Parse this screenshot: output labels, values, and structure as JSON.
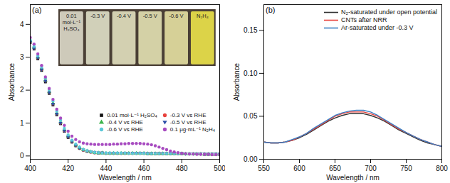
{
  "chart_data": [
    {
      "type": "scatter",
      "title": "(a)",
      "x_label": "Wavelength / nm",
      "y_label": "Absorbance",
      "x": [
        400,
        402,
        404,
        406,
        408,
        410,
        412,
        414,
        416,
        418,
        420,
        422,
        424,
        426,
        428,
        430,
        432,
        434,
        436,
        438,
        440,
        442,
        444,
        446,
        448,
        450,
        452,
        454,
        456,
        458,
        460,
        462,
        464,
        466,
        468,
        470,
        472,
        474,
        476,
        478,
        480,
        482,
        484,
        486,
        488,
        490,
        492,
        494,
        496,
        498,
        500
      ],
      "xlim": [
        400,
        500
      ],
      "xticks": [
        400,
        420,
        440,
        460,
        480,
        500
      ],
      "ylim": [
        -0.1,
        4.6
      ],
      "yticks": [
        0,
        1,
        2,
        3,
        4
      ],
      "grid": false,
      "legend": "lower right",
      "series": [
        {
          "name": "0.01 mol·L⁻¹ H₂SO₄",
          "color": "#111111",
          "marker": "square",
          "values": [
            3.45,
            3.25,
            2.95,
            2.6,
            2.25,
            1.9,
            1.55,
            1.25,
            0.98,
            0.75,
            0.56,
            0.42,
            0.31,
            0.23,
            0.18,
            0.14,
            0.12,
            0.1,
            0.09,
            0.09,
            0.08,
            0.08,
            0.08,
            0.08,
            0.08,
            0.08,
            0.08,
            0.08,
            0.08,
            0.08,
            0.08,
            0.07,
            0.07,
            0.07,
            0.07,
            0.07,
            0.07,
            0.07,
            0.07,
            0.07,
            0.07,
            0.06,
            0.06,
            0.06,
            0.06,
            0.06,
            0.05,
            0.05,
            0.05,
            0.05,
            0.05
          ]
        },
        {
          "name": "-0.3 V vs RHE",
          "color": "#e8413c",
          "marker": "circle",
          "values": [
            3.48,
            3.28,
            2.98,
            2.63,
            2.28,
            1.93,
            1.58,
            1.28,
            1.0,
            0.77,
            0.58,
            0.43,
            0.32,
            0.24,
            0.18,
            0.14,
            0.12,
            0.1,
            0.09,
            0.09,
            0.08,
            0.08,
            0.08,
            0.08,
            0.08,
            0.08,
            0.08,
            0.08,
            0.08,
            0.08,
            0.08,
            0.07,
            0.07,
            0.07,
            0.07,
            0.07,
            0.07,
            0.07,
            0.07,
            0.07,
            0.07,
            0.06,
            0.06,
            0.06,
            0.06,
            0.06,
            0.05,
            0.05,
            0.05,
            0.05,
            0.05
          ]
        },
        {
          "name": "-0.4 V vs RHE",
          "color": "#3cb44b",
          "marker": "triangle",
          "values": [
            3.5,
            3.3,
            3.0,
            2.65,
            2.3,
            1.95,
            1.6,
            1.3,
            1.02,
            0.79,
            0.6,
            0.45,
            0.33,
            0.25,
            0.19,
            0.15,
            0.12,
            0.1,
            0.09,
            0.09,
            0.08,
            0.08,
            0.08,
            0.08,
            0.08,
            0.08,
            0.08,
            0.08,
            0.08,
            0.08,
            0.08,
            0.07,
            0.07,
            0.07,
            0.07,
            0.07,
            0.07,
            0.07,
            0.07,
            0.07,
            0.07,
            0.06,
            0.06,
            0.06,
            0.06,
            0.06,
            0.05,
            0.05,
            0.05,
            0.05,
            0.05
          ]
        },
        {
          "name": "-0.5 V vs RHE",
          "color": "#2b4fa8",
          "marker": "triangle-down",
          "values": [
            3.46,
            3.26,
            2.97,
            2.62,
            2.27,
            1.92,
            1.57,
            1.27,
            0.99,
            0.76,
            0.57,
            0.43,
            0.31,
            0.23,
            0.18,
            0.14,
            0.12,
            0.1,
            0.09,
            0.09,
            0.08,
            0.08,
            0.08,
            0.08,
            0.08,
            0.08,
            0.08,
            0.08,
            0.08,
            0.08,
            0.08,
            0.07,
            0.07,
            0.07,
            0.07,
            0.07,
            0.07,
            0.07,
            0.07,
            0.07,
            0.07,
            0.06,
            0.06,
            0.06,
            0.06,
            0.06,
            0.05,
            0.05,
            0.05,
            0.05,
            0.05
          ]
        },
        {
          "name": "-0.6 V vs RHE",
          "color": "#5bc8d8",
          "marker": "circle",
          "values": [
            3.52,
            3.33,
            3.04,
            2.7,
            2.36,
            2.01,
            1.67,
            1.36,
            1.08,
            0.84,
            0.64,
            0.48,
            0.36,
            0.27,
            0.2,
            0.16,
            0.13,
            0.11,
            0.1,
            0.09,
            0.09,
            0.09,
            0.09,
            0.09,
            0.09,
            0.09,
            0.08,
            0.08,
            0.08,
            0.08,
            0.08,
            0.07,
            0.07,
            0.07,
            0.07,
            0.07,
            0.07,
            0.07,
            0.07,
            0.07,
            0.07,
            0.06,
            0.06,
            0.06,
            0.06,
            0.06,
            0.05,
            0.05,
            0.05,
            0.05,
            0.05
          ]
        },
        {
          "name": "0.1 μg·mL⁻¹ N₂H₄",
          "color": "#a74bc0",
          "marker": "circle",
          "values": [
            3.6,
            3.4,
            3.1,
            2.75,
            2.4,
            2.05,
            1.72,
            1.42,
            1.15,
            0.93,
            0.75,
            0.6,
            0.5,
            0.43,
            0.39,
            0.37,
            0.36,
            0.35,
            0.35,
            0.35,
            0.35,
            0.35,
            0.36,
            0.36,
            0.37,
            0.37,
            0.38,
            0.38,
            0.38,
            0.38,
            0.37,
            0.36,
            0.34,
            0.31,
            0.27,
            0.23,
            0.19,
            0.15,
            0.12,
            0.1,
            0.08,
            0.07,
            0.06,
            0.06,
            0.05,
            0.05,
            0.05,
            0.05,
            0.04,
            0.04,
            0.04
          ]
        }
      ],
      "inset": {
        "labels": [
          "0.01 mol·L⁻¹ H₂SO₄",
          "-0.3 V",
          "-0.4 V",
          "-0.5 V",
          "-0.6 V",
          "N₂H₄"
        ],
        "colors": [
          "#d9d6c6",
          "#dcdcc4",
          "#dedcbc",
          "#e0ddb0",
          "#e2dca0",
          "#e8e04a"
        ]
      }
    },
    {
      "type": "line",
      "title": "(b)",
      "x_label": "Wavelength / nm",
      "y_label": "Absorbance",
      "x": [
        550,
        560,
        570,
        580,
        590,
        600,
        610,
        620,
        630,
        640,
        650,
        660,
        670,
        680,
        690,
        700,
        710,
        720,
        730,
        740,
        750,
        760,
        770,
        780,
        790,
        800
      ],
      "xlim": [
        550,
        800
      ],
      "xticks": [
        550,
        600,
        650,
        700,
        750,
        800
      ],
      "ylim": [
        0,
        0.18
      ],
      "yticks": [
        {
          "value": 0,
          "label": "0.00"
        },
        0.05,
        {
          "value": 0.1,
          "label": "0.10"
        },
        0.15
      ],
      "grid": false,
      "legend": "upper right",
      "series": [
        {
          "name": "N₂-saturated under open potential",
          "color": "#333333",
          "values": [
            0.02,
            0.019,
            0.019,
            0.02,
            0.022,
            0.025,
            0.029,
            0.034,
            0.039,
            0.044,
            0.048,
            0.051,
            0.053,
            0.053,
            0.053,
            0.051,
            0.048,
            0.044,
            0.039,
            0.034,
            0.03,
            0.026,
            0.022,
            0.019,
            0.017,
            0.015
          ]
        },
        {
          "name": "CNTs after NRR",
          "color": "#e8413c",
          "values": [
            0.02,
            0.019,
            0.019,
            0.02,
            0.022,
            0.026,
            0.03,
            0.035,
            0.04,
            0.045,
            0.05,
            0.053,
            0.055,
            0.055,
            0.055,
            0.053,
            0.05,
            0.045,
            0.04,
            0.035,
            0.031,
            0.027,
            0.023,
            0.02,
            0.017,
            0.015
          ]
        },
        {
          "name": "Ar-saturated under -0.3 V",
          "color": "#3b7fc4",
          "values": [
            0.02,
            0.019,
            0.019,
            0.02,
            0.023,
            0.026,
            0.03,
            0.036,
            0.041,
            0.046,
            0.051,
            0.054,
            0.056,
            0.057,
            0.057,
            0.055,
            0.051,
            0.046,
            0.041,
            0.036,
            0.031,
            0.027,
            0.023,
            0.02,
            0.017,
            0.015
          ]
        }
      ]
    }
  ]
}
